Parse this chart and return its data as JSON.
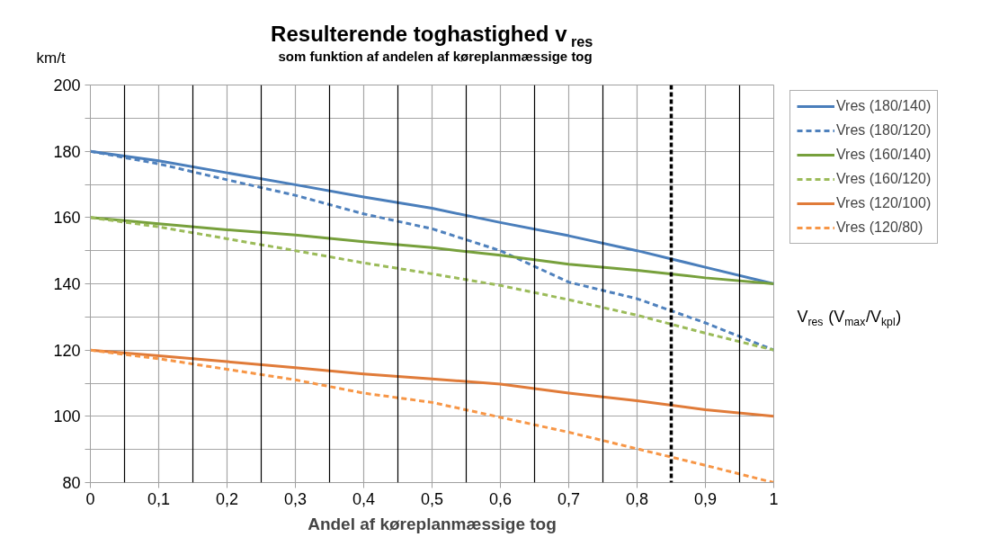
{
  "chart_data": {
    "type": "line",
    "title": "Resulterende toghastighed  v$_{res}$",
    "subtitle": "som funktion af andelen af køreplanmæssige tog",
    "xlabel": "Andel af køreplanmæssige tog",
    "ylabel": "km/t",
    "annotations": [
      "V$_{res}$ (V$_{max}$/V$_{kpl}$)"
    ],
    "x": [
      0,
      0.1,
      0.2,
      0.3,
      0.4,
      0.5,
      0.6,
      0.7,
      0.8,
      0.9,
      1
    ],
    "series": [
      {
        "name": "Vres (180/140)",
        "color": "#4a7ebb",
        "line_style": "solid",
        "values": [
          180,
          177.1,
          173.5,
          169.9,
          166.2,
          162.8,
          158.5,
          154.5,
          150,
          145,
          140
        ]
      },
      {
        "name": "Vres (180/120)",
        "color": "#4f81bd",
        "line_style": "dashed",
        "values": [
          180,
          176.2,
          171.4,
          166.7,
          161.1,
          156.6,
          150,
          140.5,
          135.5,
          128.2,
          120
        ]
      },
      {
        "name": "Vres (160/140)",
        "color": "#77a03c",
        "line_style": "solid",
        "values": [
          160,
          158.1,
          156.3,
          154.7,
          152.7,
          150.9,
          148.6,
          145.9,
          144.1,
          141.8,
          140
        ]
      },
      {
        "name": "Vres (160/120)",
        "color": "#9bbb59",
        "line_style": "dashed",
        "values": [
          160,
          157.2,
          153.6,
          150,
          146.3,
          143,
          139.5,
          135.2,
          130.5,
          125.1,
          120
        ]
      },
      {
        "name": "Vres (120/100)",
        "color": "#e07b39",
        "line_style": "solid",
        "values": [
          120,
          118.3,
          116.5,
          114.7,
          112.8,
          111.3,
          109.7,
          107,
          104.7,
          102,
          100
        ]
      },
      {
        "name": "Vres (120/80)",
        "color": "#f79646",
        "line_style": "dashed",
        "values": [
          120,
          117.4,
          114.2,
          111,
          107,
          104.2,
          99.7,
          95.2,
          90.2,
          85.2,
          80
        ]
      }
    ],
    "xlim": [
      0,
      1
    ],
    "xticks": [
      0,
      {
        "value": 0.1,
        "label": "0,1"
      },
      {
        "value": 0.2,
        "label": "0,2"
      },
      {
        "value": 0.3,
        "label": "0,3"
      },
      {
        "value": 0.4,
        "label": "0,4"
      },
      {
        "value": 0.5,
        "label": "0,5"
      },
      {
        "value": 0.6,
        "label": "0,6"
      },
      {
        "value": 0.7,
        "label": "0,7"
      },
      {
        "value": 0.8,
        "label": "0,8"
      },
      {
        "value": 0.9,
        "label": "0,9"
      },
      1
    ],
    "ylim": [
      80,
      200
    ],
    "yticks": [
      80,
      {
        "value": 90,
        "label": null
      },
      100,
      {
        "value": 110,
        "label": null
      },
      120,
      {
        "value": 130,
        "label": null
      },
      140,
      {
        "value": 150,
        "label": null
      },
      160,
      {
        "value": 170,
        "label": null
      },
      180,
      {
        "value": 190,
        "label": null
      },
      200
    ],
    "ref_lines": [
      {
        "axis": "x",
        "value": 0.05,
        "color": "#000000"
      },
      {
        "axis": "x",
        "value": 0.15,
        "color": "#000000"
      },
      {
        "axis": "x",
        "value": 0.25,
        "color": "#000000"
      },
      {
        "axis": "x",
        "value": 0.35,
        "color": "#000000"
      },
      {
        "axis": "x",
        "value": 0.45,
        "color": "#000000"
      },
      {
        "axis": "x",
        "value": 0.55,
        "color": "#000000"
      },
      {
        "axis": "x",
        "value": 0.65,
        "color": "#000000"
      },
      {
        "axis": "x",
        "value": 0.75,
        "color": "#000000"
      },
      {
        "axis": "x",
        "value": 0.85,
        "color": "#000000",
        "line_style": "dashed"
      },
      {
        "axis": "x",
        "value": 0.95,
        "color": "#000000"
      }
    ],
    "grid": true,
    "legend": "right",
    "marker": "none"
  }
}
